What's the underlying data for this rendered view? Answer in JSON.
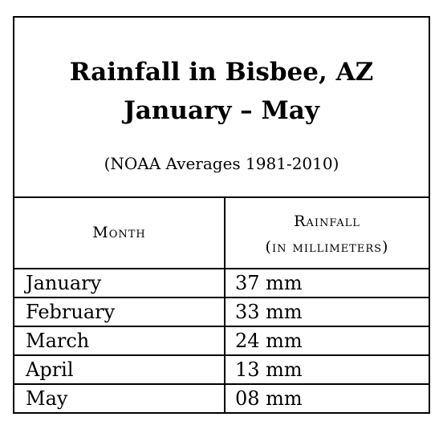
{
  "title": {
    "line1": "Rainfall in Bisbee, AZ",
    "line2": "January – May",
    "subtitle": "(NOAA Averages 1981-2010)"
  },
  "headers": {
    "month": "Month",
    "rainfall_line1": "Rainfall",
    "rainfall_line2": "(in millimeters)"
  },
  "rows": [
    {
      "month": "January",
      "rainfall": "37 mm"
    },
    {
      "month": "February",
      "rainfall": "33 mm"
    },
    {
      "month": "March",
      "rainfall": "24 mm"
    },
    {
      "month": "April",
      "rainfall": "13 mm"
    },
    {
      "month": "May",
      "rainfall": "08 mm"
    }
  ],
  "chart_data": {
    "type": "table",
    "title": "Rainfall in Bisbee, AZ January – May",
    "subtitle": "(NOAA Averages 1981-2010)",
    "columns": [
      "Month",
      "Rainfall (in millimeters)"
    ],
    "categories": [
      "January",
      "February",
      "March",
      "April",
      "May"
    ],
    "values": [
      37,
      33,
      24,
      13,
      8
    ]
  }
}
